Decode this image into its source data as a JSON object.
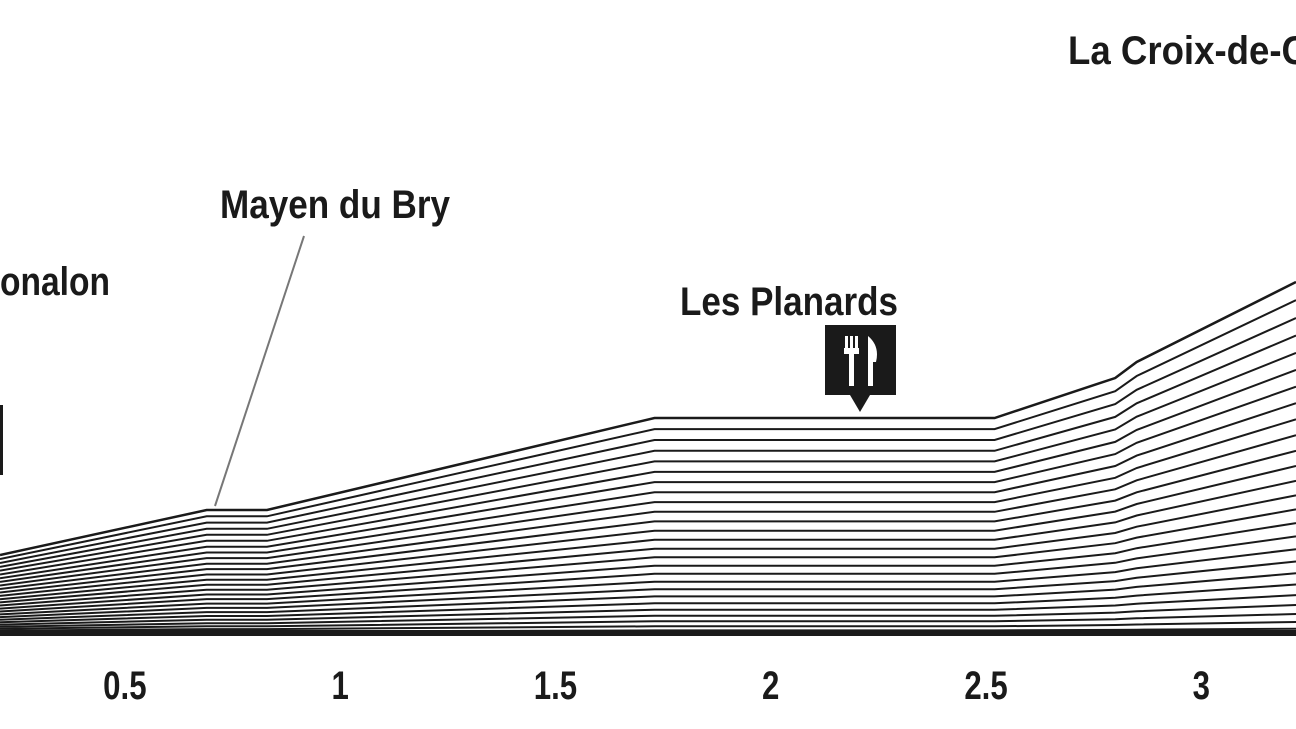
{
  "chart_data": {
    "type": "profile",
    "annotations": [
      "onalon",
      "Mayen du Bry",
      "Les Planards",
      "La Croix-de-C"
    ],
    "x": [
      0.21,
      0.69,
      0.83,
      1.73,
      2.52,
      2.8,
      2.85,
      3.22
    ],
    "values": [
      78,
      123,
      123,
      215,
      215,
      255,
      271,
      351
    ],
    "color": "#1a1a1a",
    "xlim": [
      0.21,
      3.22
    ],
    "xticks": [
      0.5,
      1,
      1.5,
      2,
      2.5,
      3
    ],
    "ylim": [
      0,
      633
    ]
  }
}
